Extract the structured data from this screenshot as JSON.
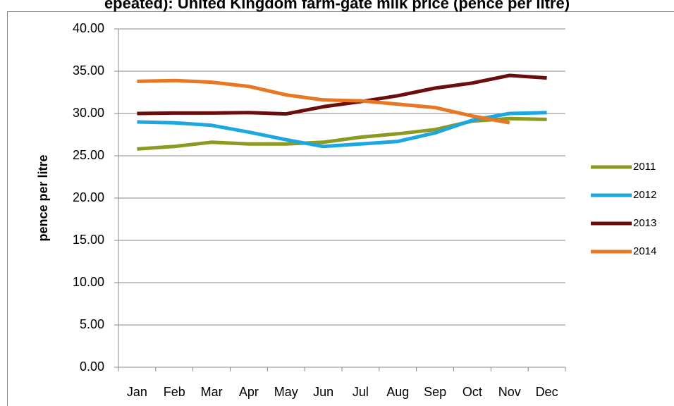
{
  "chart_data": {
    "type": "line",
    "title": "epeated): United Kingdom farm-gate milk price (pence per litre)",
    "y_label": "pence per litre",
    "categories": [
      "Jan",
      "Feb",
      "Mar",
      "Apr",
      "May",
      "Jun",
      "Jul",
      "Aug",
      "Sep",
      "Oct",
      "Nov",
      "Dec"
    ],
    "series": [
      {
        "name": "2011",
        "color": "#8c9a23",
        "values": [
          25.8,
          26.1,
          26.6,
          26.4,
          26.4,
          26.6,
          27.2,
          27.6,
          28.1,
          29.1,
          29.4,
          29.3
        ]
      },
      {
        "name": "2012",
        "color": "#1ca7e0",
        "values": [
          29.0,
          28.9,
          28.6,
          27.8,
          26.9,
          26.1,
          26.4,
          26.7,
          27.7,
          29.2,
          30.0,
          30.1
        ]
      },
      {
        "name": "2013",
        "color": "#6b0d0d",
        "values": [
          30.0,
          30.05,
          30.05,
          30.1,
          29.95,
          30.8,
          31.4,
          32.1,
          33.0,
          33.6,
          34.5,
          34.2
        ]
      },
      {
        "name": "2014",
        "color": "#e87722",
        "values": [
          33.8,
          33.9,
          33.7,
          33.2,
          32.2,
          31.6,
          31.5,
          31.1,
          30.7,
          29.7,
          28.9,
          null
        ]
      }
    ],
    "ylim": [
      0,
      40
    ],
    "yticks": [
      {
        "value": 0,
        "label": "0.00"
      },
      {
        "value": 5,
        "label": "5.00"
      },
      {
        "value": 10,
        "label": "10.00"
      },
      {
        "value": 15,
        "label": "15.00"
      },
      {
        "value": 20,
        "label": "20.00"
      },
      {
        "value": 25,
        "label": "25.00"
      },
      {
        "value": 30,
        "label": "30.00"
      },
      {
        "value": 35,
        "label": "35.00"
      },
      {
        "value": 40,
        "label": "40.00"
      }
    ],
    "grid": true,
    "legend": "right"
  }
}
